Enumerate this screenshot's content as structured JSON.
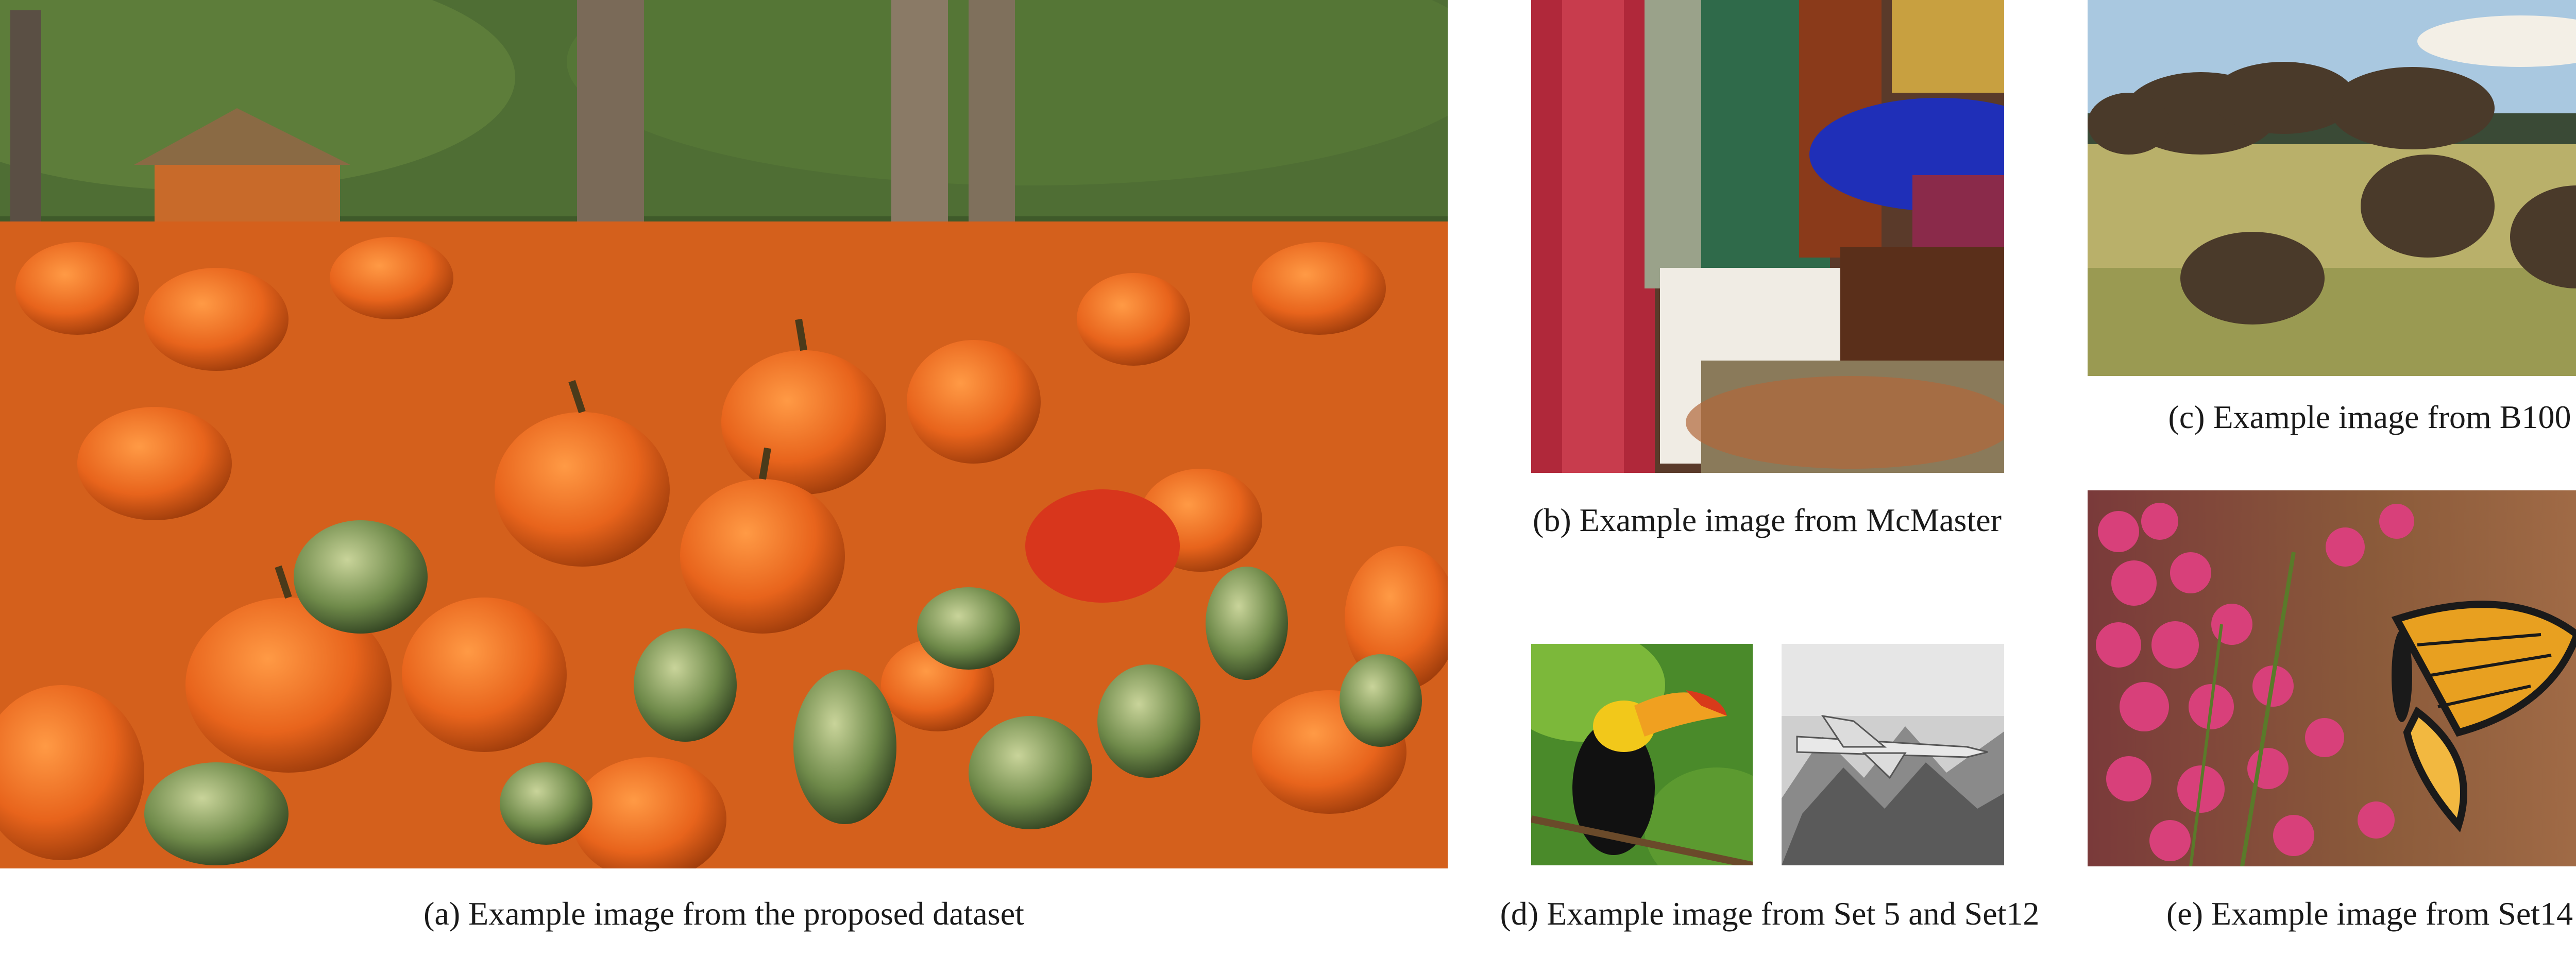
{
  "figure": {
    "captions": {
      "a": "(a) Example image from the proposed dataset",
      "b": "(b) Example image from McMaster",
      "c": "(c) Example image from B100",
      "d": "(d) Example image from Set 5 and Set12",
      "e": "(e) Example image from Set14"
    },
    "images": {
      "a": "pumpkin-patch-photo",
      "b": "fabric-textiles-photo",
      "c": "bison-herd-photo",
      "d1": "toucan-photo",
      "d2": "fighter-jet-grayscale-photo",
      "e": "monarch-butterfly-photo"
    },
    "colors": {
      "pumpkin_orange": "#e8641c",
      "gourd_green": "#6f8a4a",
      "foliage_green": "#3f5a2a",
      "fabric_red": "#b0283a",
      "fabric_blue": "#1f2fb8",
      "sky_blue": "#a9c8e0",
      "grass_tan": "#b9b06a",
      "bison_brown": "#4a3a2a",
      "flower_pink": "#d8407a",
      "butterfly_orange": "#e8a020"
    }
  }
}
